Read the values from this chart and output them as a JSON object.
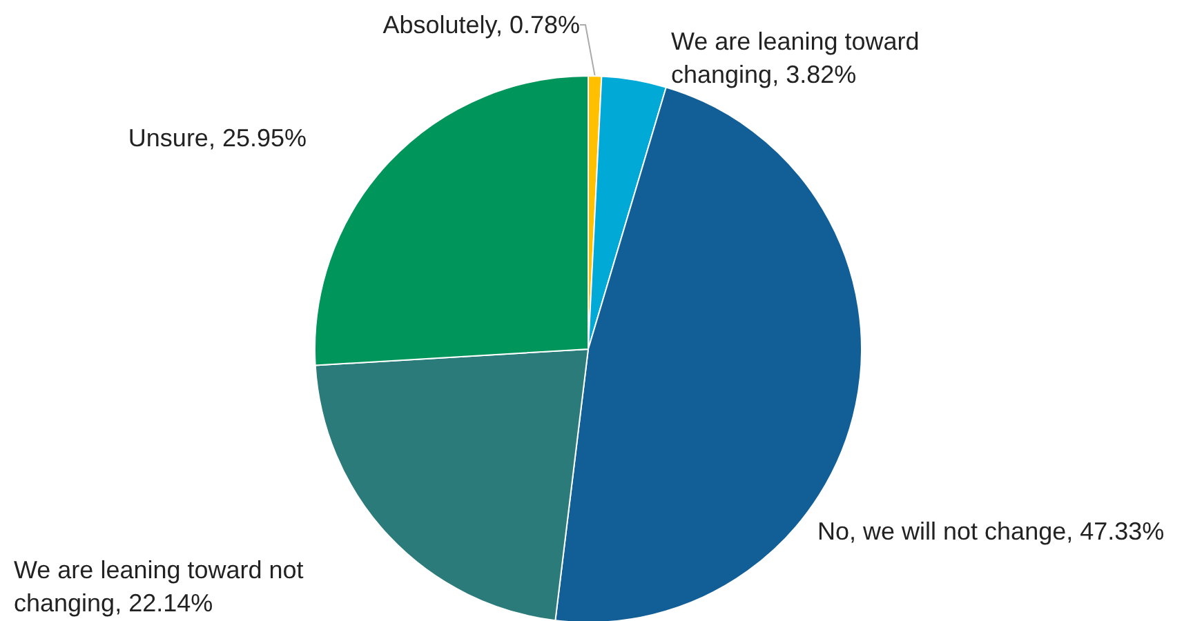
{
  "chart_data": {
    "type": "pie",
    "categories": [
      "Absolutely",
      "We are leaning toward changing",
      "No, we will not change",
      "We are leaning toward not changing",
      "Unsure"
    ],
    "values": [
      0.78,
      3.82,
      47.33,
      22.14,
      25.95
    ],
    "value_labels": [
      "0.78%",
      "3.82%",
      "47.33%",
      "22.14%",
      "25.95%"
    ],
    "colors": [
      "#ffc000",
      "#00a9d6",
      "#115f96",
      "#2a7b7a",
      "#00955a"
    ],
    "legend": false
  }
}
